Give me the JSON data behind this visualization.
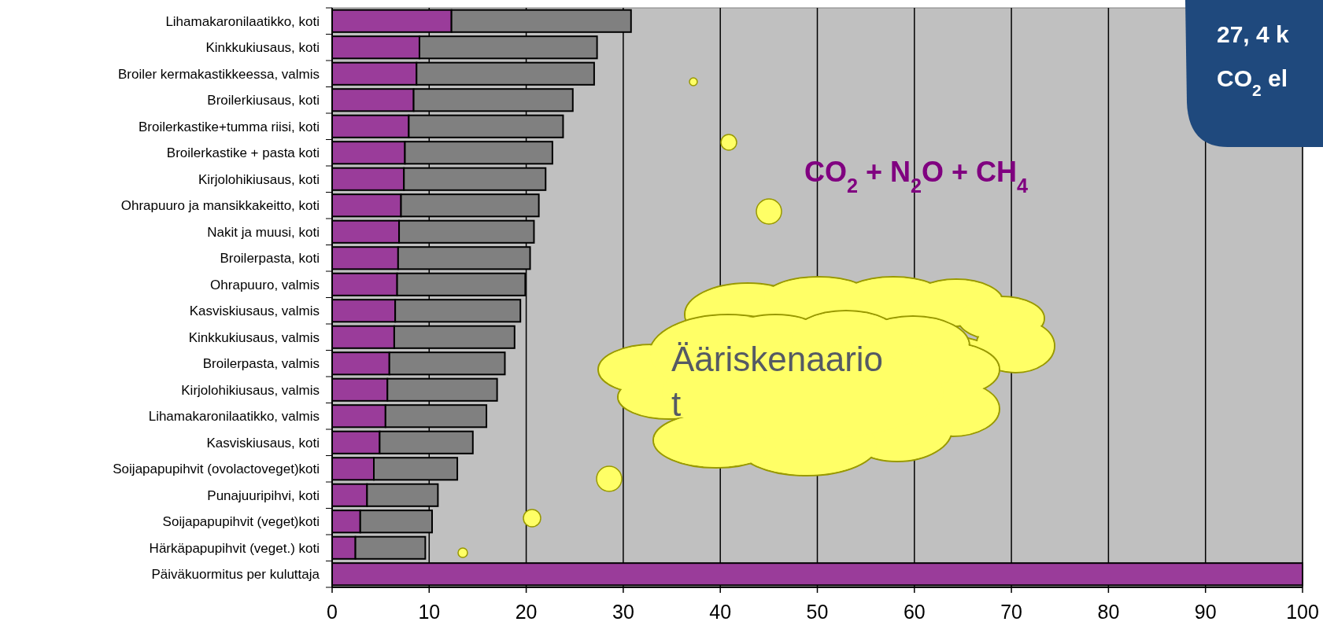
{
  "chart_data": {
    "type": "bar",
    "orientation": "horizontal",
    "stacked": true,
    "categories": [
      "Lihamakaronilaatikko, koti",
      "Kinkkukiusaus, koti",
      "Broiler kermakastikkeessa, valmis",
      "Broilerkiusaus, koti",
      "Broilerkastike+tumma riisi, koti",
      "Broilerkastike + pasta koti",
      "Kirjolohikiusaus, koti",
      "Ohrapuuro ja mansikkakeitto, koti",
      "Nakit ja muusi, koti",
      "Broilerpasta, koti",
      "Ohrapuuro, valmis",
      "Kasviskiusaus, valmis",
      "Kinkkukiusaus, valmis",
      "Broilerpasta, valmis",
      "Kirjolohikiusaus, valmis",
      "Lihamakaronilaatikko, valmis",
      "Kasviskiusaus, koti",
      "Soijapapupihvit (ovolactoveget)koti",
      "Punajuuripihvi, koti",
      "Soijapapupihvit (veget)koti",
      "Härkäpapupihvit (veget.) koti",
      "Päiväkuormitus per kuluttaja"
    ],
    "series": [
      {
        "color": "#9a3c9a",
        "values": [
          12.3,
          9.0,
          8.7,
          8.4,
          7.9,
          7.5,
          7.4,
          7.1,
          6.9,
          6.8,
          6.7,
          6.5,
          6.4,
          5.9,
          5.7,
          5.5,
          4.9,
          4.3,
          3.6,
          2.9,
          2.4,
          100
        ]
      },
      {
        "color": "#808080",
        "values": [
          18.5,
          18.3,
          18.3,
          16.4,
          15.9,
          15.2,
          14.6,
          14.2,
          13.9,
          13.6,
          13.2,
          12.9,
          12.4,
          11.9,
          11.3,
          10.4,
          9.6,
          8.6,
          7.3,
          7.4,
          7.2,
          null
        ]
      }
    ],
    "xlim": [
      0,
      100
    ],
    "xticks": [
      0,
      10,
      20,
      30,
      40,
      50,
      60,
      70,
      80,
      90,
      100
    ],
    "grid": "x",
    "annotations": [
      "CO$_{2}$ + N$_{2}$O + CH$_{4}$",
      "Ääriskenaario\nt",
      "27, 4 k\nCO$_{2}$ el"
    ]
  }
}
